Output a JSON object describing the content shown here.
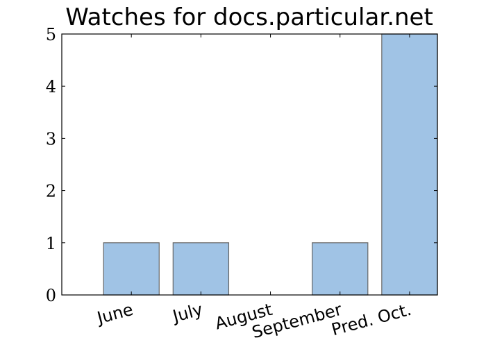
{
  "chart_data": {
    "type": "bar",
    "title": "Watches for docs.particular.net",
    "categories": [
      "June",
      "July",
      "August",
      "September",
      "Pred. Oct."
    ],
    "values": [
      1,
      1,
      0,
      1,
      5
    ],
    "xlabel": "",
    "ylabel": "",
    "ylim": [
      0,
      5
    ],
    "yticks": [
      0,
      1,
      2,
      3,
      4,
      5
    ],
    "grid": false,
    "bar_color": "#a0c3e5",
    "bar_edge_color": "#666666"
  }
}
